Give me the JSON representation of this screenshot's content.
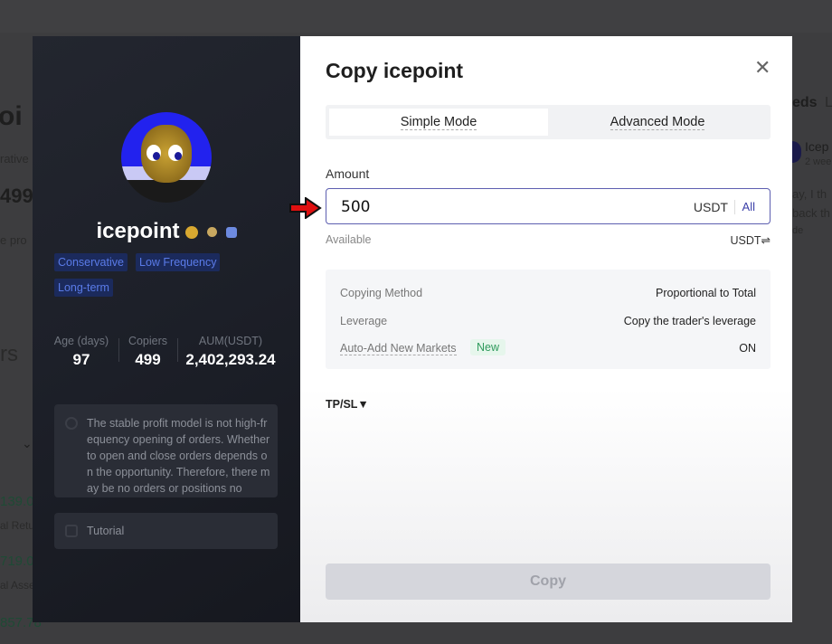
{
  "background": {
    "left_fragments": [
      "oi",
      "rative",
      "499",
      "e pro",
      "rs",
      "⌄",
      "139.0",
      "al Retu",
      "719.0",
      "al Asse",
      "857.78"
    ],
    "right_fragments": [
      "eds",
      "L",
      "Icep",
      "2 wee",
      "ay, I th",
      "back th",
      "de"
    ]
  },
  "trader": {
    "name": "icepoint",
    "tags": [
      "Conservative",
      "Low Frequency",
      "Long-term"
    ],
    "stats": [
      {
        "label": "Age (days)",
        "value": "97"
      },
      {
        "label": "Copiers",
        "value": "499"
      },
      {
        "label": "AUM(USDT)",
        "value": "2,402,293.24"
      }
    ],
    "description": "The stable profit model is not high-frequency opening of orders. Whether to open and close orders depends on the opportunity. Therefore, there may be no orders or positions no",
    "tutorial": "Tutorial"
  },
  "modal": {
    "title": "Copy icepoint",
    "close_icon": "close-icon",
    "tabs": [
      {
        "label": "Simple Mode",
        "active": true
      },
      {
        "label": "Advanced Mode",
        "active": false
      }
    ],
    "amount_label": "Amount",
    "amount_value": "500",
    "amount_unit": "USDT",
    "all_label": "All",
    "available_label": "Available",
    "available_unit": "USDT⇌",
    "settings": [
      {
        "label": "Copying Method",
        "value": "Proportional to Total"
      },
      {
        "label": "Leverage",
        "value": "Copy the trader's leverage"
      },
      {
        "label": "Auto-Add New Markets",
        "badge": "New",
        "value": "ON"
      }
    ],
    "tpsl_label": "TP/SL▼",
    "copy_button": "Copy",
    "accent_color": "#3b3fa8"
  }
}
